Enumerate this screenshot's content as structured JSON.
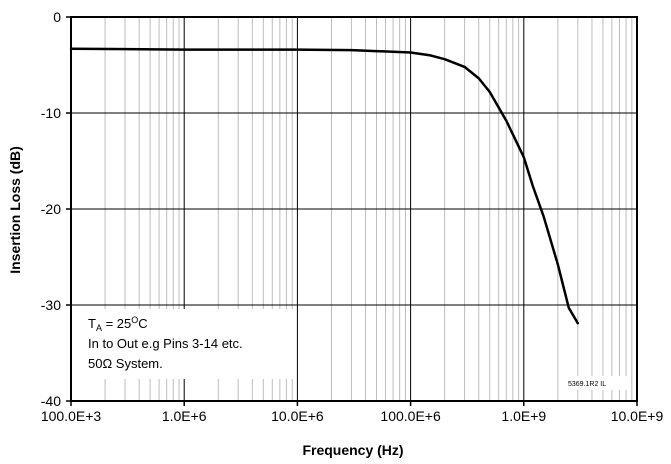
{
  "chart_data": {
    "type": "line",
    "title": "",
    "xlabel": "Frequency (Hz)",
    "ylabel": "Insertion Loss (dB)",
    "xscale": "log",
    "xlim": [
      100000,
      10000000000
    ],
    "ylim": [
      -40,
      0
    ],
    "grid": true,
    "x_ticks": [
      100000,
      1000000,
      10000000,
      100000000,
      1000000000,
      10000000000
    ],
    "x_tick_labels": [
      "100.0E+3",
      "1.0E+6",
      "10.0E+6",
      "100.0E+6",
      "1.0E+9",
      "10.0E+9"
    ],
    "y_ticks": [
      0,
      -10,
      -20,
      -30,
      -40
    ],
    "y_tick_labels": [
      "0",
      "-10",
      "-20",
      "-30",
      "-40"
    ],
    "series": [
      {
        "color": "#000000",
        "x": [
          100000,
          1000000,
          10000000,
          30000000,
          100000000,
          150000000,
          200000000,
          300000000,
          400000000,
          500000000,
          700000000,
          1000000000,
          1200000000,
          1500000000,
          2000000000,
          2500000000,
          3000000000
        ],
        "y": [
          -3.3,
          -3.4,
          -3.4,
          -3.45,
          -3.7,
          -4.0,
          -4.4,
          -5.2,
          -6.4,
          -7.8,
          -10.8,
          -14.6,
          -17.6,
          -20.8,
          -25.8,
          -30.3,
          -31.9
        ]
      }
    ],
    "annotation": {
      "line1_main": "T",
      "line1_sub": "A",
      "line1_mid": " = 25",
      "line1_sup": "O",
      "line1_end": "C",
      "line2": "In to Out e.g Pins 3-14 etc.",
      "line3": "50Ω System."
    },
    "footnote": "5369.1R2 IL"
  }
}
